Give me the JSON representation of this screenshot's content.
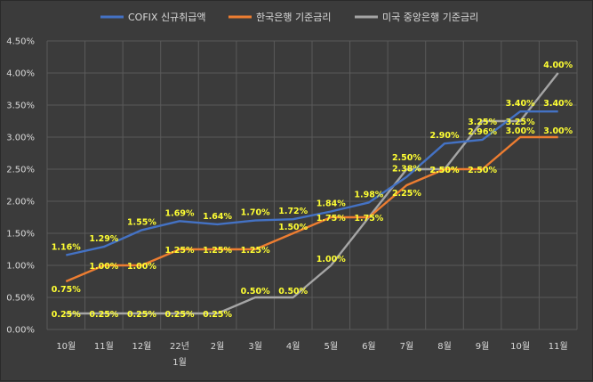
{
  "chart_data": {
    "type": "line",
    "categories": [
      "10월",
      "11월",
      "12월",
      "22년 1월",
      "2월",
      "3월",
      "4월",
      "5월",
      "6월",
      "7월",
      "8월",
      "9월",
      "10월",
      "11월"
    ],
    "category_lines": [
      [
        "10월"
      ],
      [
        "11월"
      ],
      [
        "12월"
      ],
      [
        "22년",
        "1월"
      ],
      [
        "2월"
      ],
      [
        "3월"
      ],
      [
        "4월"
      ],
      [
        "5월"
      ],
      [
        "6월"
      ],
      [
        "7월"
      ],
      [
        "8월"
      ],
      [
        "9월"
      ],
      [
        "10월"
      ],
      [
        "11월"
      ]
    ],
    "ylim": [
      0,
      4.5
    ],
    "yticks": [
      "0.00%",
      "0.50%",
      "1.00%",
      "1.50%",
      "2.00%",
      "2.50%",
      "3.00%",
      "3.50%",
      "4.00%",
      "4.50%"
    ],
    "legend_position": "top",
    "grid": true,
    "series": [
      {
        "name": "COFIX 신규취급액",
        "color": "#4472c4",
        "values": [
          1.16,
          1.29,
          1.55,
          1.69,
          1.64,
          1.7,
          1.72,
          1.84,
          1.98,
          2.38,
          2.9,
          2.96,
          3.4,
          3.4
        ],
        "labels": [
          "1.16%",
          "1.29%",
          "1.55%",
          "1.69%",
          "1.64%",
          "1.70%",
          "1.72%",
          "1.84%",
          "1.98%",
          "2.38%",
          "2.90%",
          "2.96%",
          "3.40%",
          "3.40%"
        ]
      },
      {
        "name": "한국은행 기준금리",
        "color": "#ed7d31",
        "values": [
          0.75,
          1.0,
          1.0,
          1.25,
          1.25,
          1.25,
          1.5,
          1.75,
          1.75,
          2.25,
          2.5,
          2.5,
          3.0,
          3.0
        ],
        "labels": [
          "0.75%",
          "1.00%",
          "1.00%",
          "1.25%",
          "1.25%",
          "1.25%",
          "1.50%",
          "1.75%",
          "1.75%",
          "2.25%",
          "2.50%",
          "2.50%",
          "3.00%",
          "3.00%"
        ]
      },
      {
        "name": "미국 중앙은행 기준금리",
        "color": "#a5a5a5",
        "values": [
          0.25,
          0.25,
          0.25,
          0.25,
          0.25,
          0.5,
          0.5,
          1.0,
          null,
          2.5,
          2.5,
          3.25,
          3.25,
          4.0
        ],
        "labels": [
          "0.25%",
          "0.25%",
          "0.25%",
          "0.25%",
          "0.25%",
          "0.50%",
          "0.50%",
          "1.00%",
          "",
          "2.50%",
          "2.50%",
          "3.25%",
          "3.25%",
          "4.00%"
        ],
        "line_values": [
          0.25,
          0.25,
          0.25,
          0.25,
          0.25,
          0.5,
          0.5,
          1.0,
          1.75,
          2.5,
          2.5,
          3.25,
          3.25,
          4.0
        ]
      }
    ]
  }
}
